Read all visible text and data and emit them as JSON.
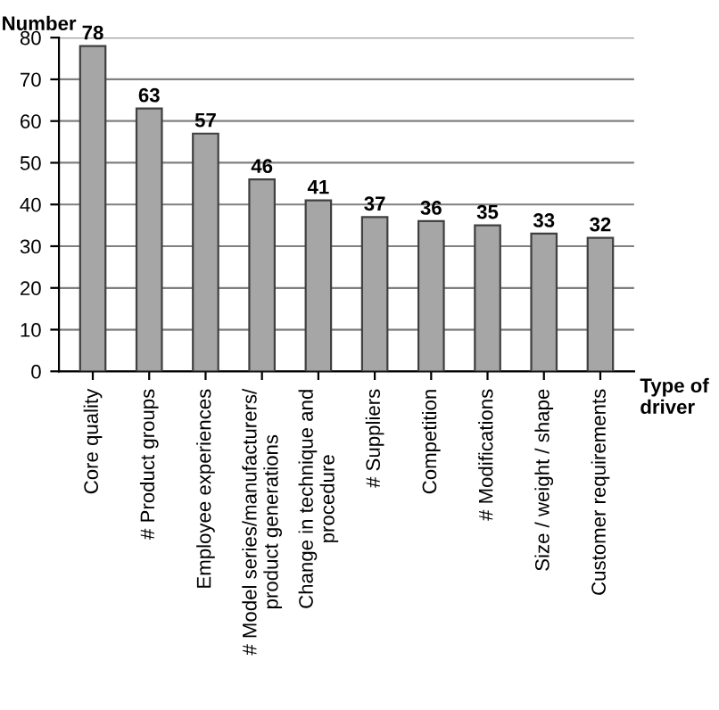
{
  "chart_data": {
    "type": "bar",
    "ylabel": "Number",
    "xlabel": "Type of driver",
    "categories": [
      "Core quality",
      "# Product groups",
      "Employee experiences",
      "# Model series/manufacturers/\nproduct generations",
      "Change in technique and\nprocedure",
      "# Suppliers",
      "Competition",
      "# Modifications",
      "Size / weight / shape",
      "Customer requirements"
    ],
    "values": [
      78,
      63,
      57,
      46,
      41,
      37,
      36,
      35,
      33,
      32
    ],
    "color": "#a6a6a6",
    "ylim": [
      0,
      80
    ],
    "yticks": [
      0,
      10,
      20,
      30,
      40,
      50,
      60,
      70,
      80
    ],
    "grid": "y",
    "data_labels": true
  }
}
